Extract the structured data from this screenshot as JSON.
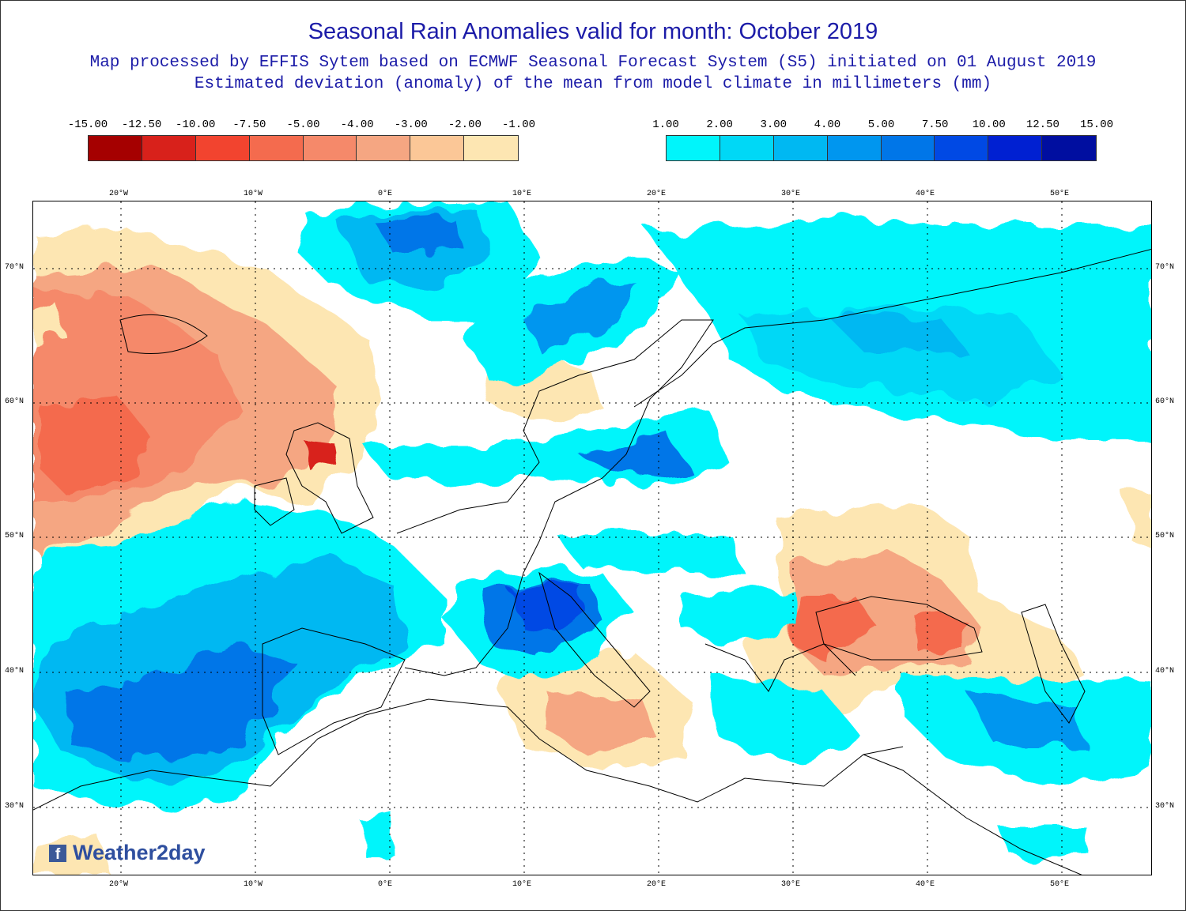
{
  "title": "Seasonal Rain Anomalies valid for month: October 2019",
  "subtitle1": "Map processed by EFFIS Sytem based on ECMWF Seasonal Forecast System (S5) initiated on 01 August 2019",
  "subtitle2": "Estimated deviation (anomaly) of the mean from model climate in millimeters (mm)",
  "legend_negative": {
    "labels": [
      "-15.00",
      "-12.50",
      "-10.00",
      "-7.50",
      "-5.00",
      "-4.00",
      "-3.00",
      "-2.00",
      "-1.00"
    ],
    "colors": [
      "#a50000",
      "#d8211b",
      "#f2442f",
      "#f46b4e",
      "#f5896a",
      "#f5a682",
      "#fbc797",
      "#fde6b2"
    ]
  },
  "legend_positive": {
    "labels": [
      "1.00",
      "2.00",
      "3.00",
      "4.00",
      "5.00",
      "7.50",
      "10.00",
      "12.50",
      "15.00"
    ],
    "colors": [
      "#00f5fb",
      "#00d8f6",
      "#00b8f2",
      "#0096ef",
      "#0076e8",
      "#0049e4",
      "#0020d2",
      "#000ea0"
    ]
  },
  "lon_labels": [
    "20°W",
    "10°W",
    "0°E",
    "10°E",
    "20°E",
    "30°E",
    "40°E",
    "50°E"
  ],
  "lat_labels": [
    "70°N",
    "60°N",
    "50°N",
    "40°N",
    "30°N"
  ],
  "logo_text": "Weather2day",
  "logo_icon": "facebook-icon"
}
